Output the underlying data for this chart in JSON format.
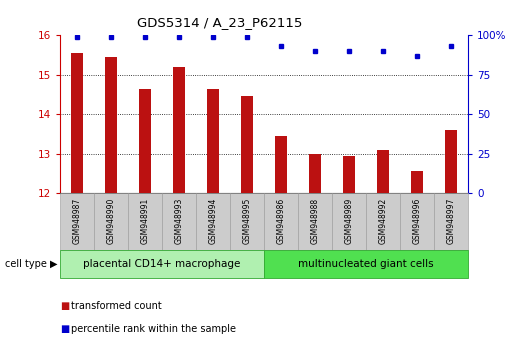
{
  "title": "GDS5314 / A_23_P62115",
  "samples": [
    "GSM948987",
    "GSM948990",
    "GSM948991",
    "GSM948993",
    "GSM948994",
    "GSM948995",
    "GSM948986",
    "GSM948988",
    "GSM948989",
    "GSM948992",
    "GSM948996",
    "GSM948997"
  ],
  "transformed_count": [
    15.55,
    15.45,
    14.65,
    15.2,
    14.65,
    14.45,
    13.45,
    13.0,
    12.95,
    13.1,
    12.55,
    13.6
  ],
  "percentile_rank": [
    99,
    99,
    99,
    99,
    99,
    99,
    93,
    90,
    90,
    90,
    87,
    93
  ],
  "group1_count": 6,
  "group2_count": 6,
  "group1_label": "placental CD14+ macrophage",
  "group2_label": "multinucleated giant cells",
  "group1_color": "#b0f0b0",
  "group2_color": "#50e050",
  "bar_color": "#bb1111",
  "dot_color": "#0000cc",
  "ylim_left": [
    12,
    16
  ],
  "ylim_right": [
    0,
    100
  ],
  "yticks_left": [
    12,
    13,
    14,
    15,
    16
  ],
  "yticks_right": [
    0,
    25,
    50,
    75,
    100
  ],
  "yticklabels_right": [
    "0",
    "25",
    "50",
    "75",
    "100%"
  ],
  "left_tick_color": "#cc0000",
  "right_tick_color": "#0000cc",
  "legend_red": "transformed count",
  "legend_blue": "percentile rank within the sample",
  "cell_type_label": "cell type",
  "background_color": "#ffffff",
  "tick_area_bg": "#cccccc",
  "bar_width": 0.35,
  "dot_size": 4
}
